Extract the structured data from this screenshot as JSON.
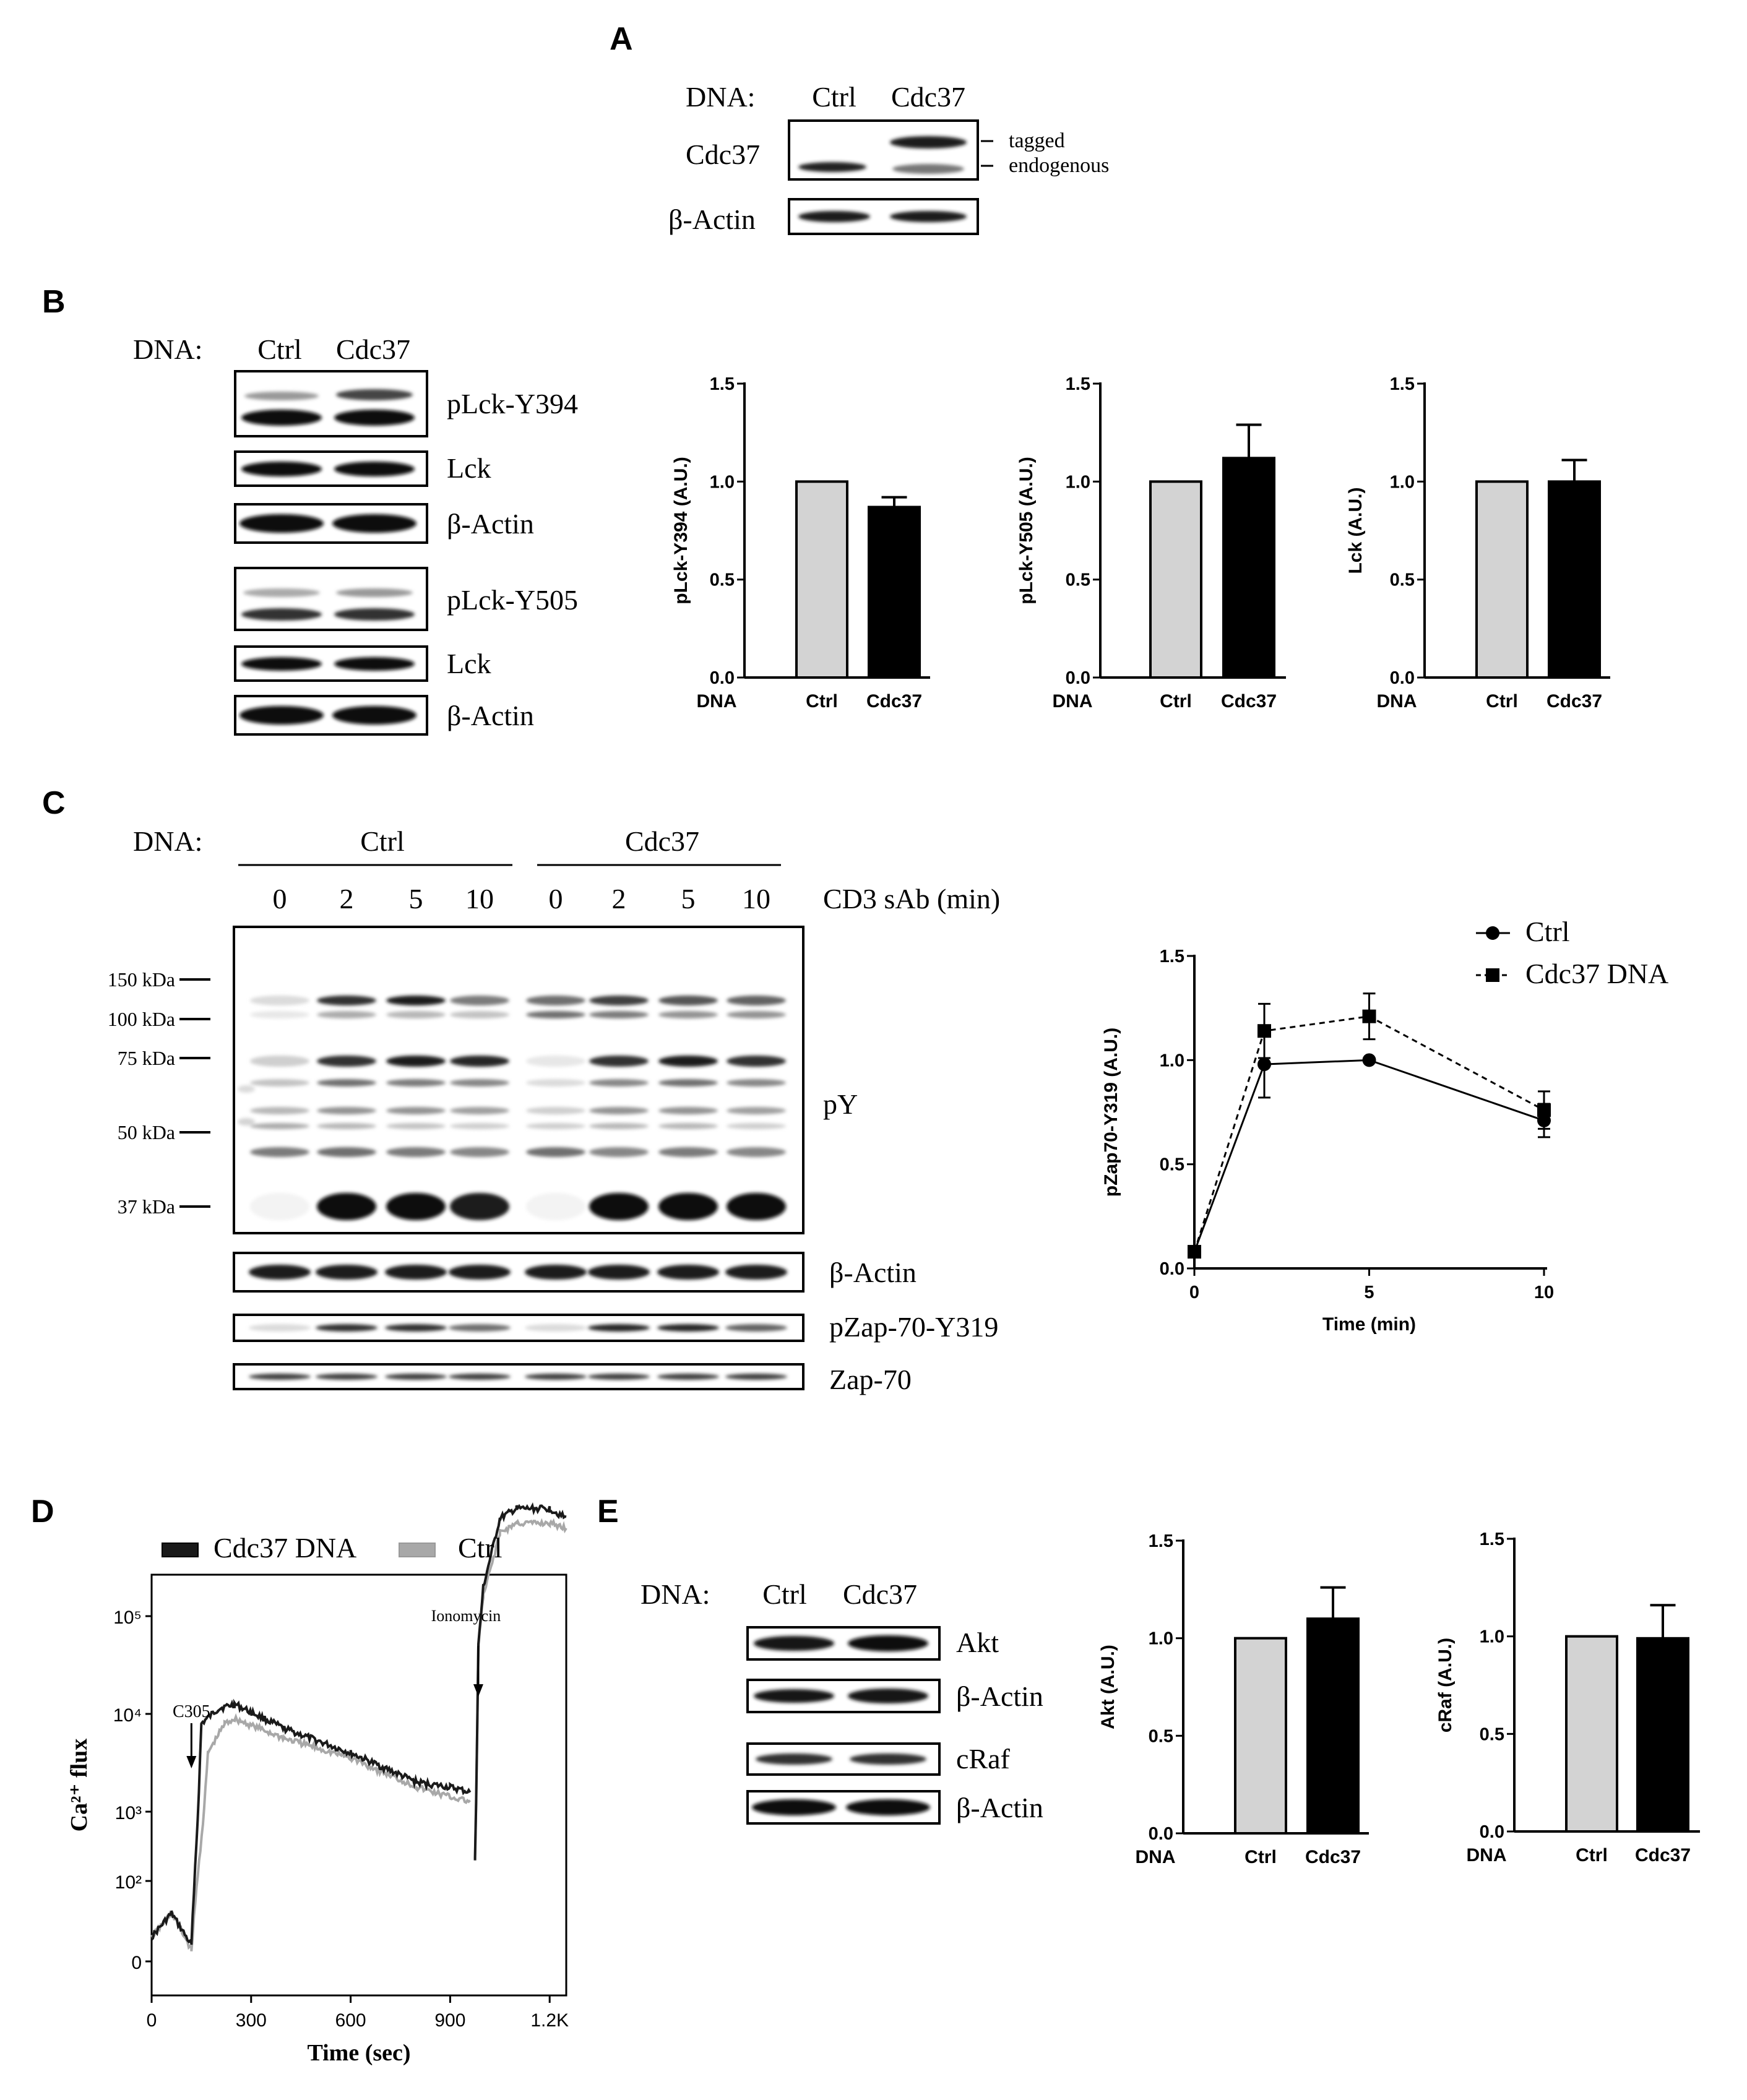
{
  "panels": {
    "A": "A",
    "B": "B",
    "C": "C",
    "D": "D",
    "E": "E"
  },
  "colors": {
    "ctrl_bar": "#d3d3d3",
    "cdc37_bar": "#000000",
    "ctrl_ca": "#a8a8a8",
    "cdc37_ca": "#1a1a1a"
  },
  "panelA": {
    "dna_label": "DNA:",
    "lanes": [
      "Ctrl",
      "Cdc37"
    ],
    "blots": [
      {
        "label": "Cdc37"
      },
      {
        "label": "β-Actin"
      }
    ],
    "annot_tagged": "tagged",
    "annot_endog": "endogenous"
  },
  "panelB": {
    "dna_label": "DNA:",
    "lanes": [
      "Ctrl",
      "Cdc37"
    ],
    "blots": [
      "pLck-Y394",
      "Lck",
      "β-Actin",
      "pLck-Y505",
      "Lck",
      "β-Actin"
    ]
  },
  "panelC": {
    "dna_label": "DNA:",
    "groups": [
      "Ctrl",
      "Cdc37"
    ],
    "times": [
      "0",
      "2",
      "5",
      "10",
      "0",
      "2",
      "5",
      "10"
    ],
    "time_label": "CD3 sAb (min)",
    "markers": [
      "150 kDa",
      "100 kDa",
      "75 kDa",
      "50 kDa",
      "37 kDa"
    ],
    "blots": [
      "pY",
      "β-Actin",
      "pZap-70-Y319",
      "Zap-70"
    ]
  },
  "panelD": {
    "flow_labels": {
      "c305": "C305",
      "ionomycin": "Ionomycin"
    }
  },
  "panelE": {
    "dna_label": "DNA:",
    "lanes": [
      "Ctrl",
      "Cdc37"
    ],
    "blots": [
      "Akt",
      "β-Actin",
      "cRaf",
      "β-Actin"
    ]
  },
  "chart_data": [
    {
      "id": "B1",
      "type": "bar",
      "categories": [
        "Ctrl",
        "Cdc37"
      ],
      "values": [
        1.0,
        0.87
      ],
      "errors": [
        0,
        0.05
      ],
      "ylabel": "pLck-Y394 (A.U.)",
      "xlabel": "DNA",
      "ylim": [
        0,
        1.5
      ],
      "yticks": [
        "0.0",
        "0.5",
        "1.0",
        "1.5"
      ]
    },
    {
      "id": "B2",
      "type": "bar",
      "categories": [
        "Ctrl",
        "Cdc37"
      ],
      "values": [
        1.0,
        1.12
      ],
      "errors": [
        0,
        0.17
      ],
      "ylabel": "pLck-Y505 (A.U.)",
      "xlabel": "DNA",
      "ylim": [
        0,
        1.5
      ],
      "yticks": [
        "0.0",
        "0.5",
        "1.0",
        "1.5"
      ]
    },
    {
      "id": "B3",
      "type": "bar",
      "categories": [
        "Ctrl",
        "Cdc37"
      ],
      "values": [
        1.0,
        1.0
      ],
      "errors": [
        0,
        0.11
      ],
      "ylabel": "Lck (A.U.)",
      "xlabel": "DNA",
      "ylim": [
        0,
        1.5
      ],
      "yticks": [
        "0.0",
        "0.5",
        "1.0",
        "1.5"
      ]
    },
    {
      "id": "C1",
      "type": "line",
      "x": [
        0,
        2,
        5,
        10
      ],
      "xlim": [
        0,
        10
      ],
      "xticks": [
        "0",
        "5",
        "10"
      ],
      "ylim": [
        0,
        1.5
      ],
      "yticks": [
        "0.0",
        "0.5",
        "1.0",
        "1.5"
      ],
      "xlabel": "Time (min)",
      "ylabel": "pZap70-Y319 (A.U.)",
      "series": [
        {
          "name": "Ctrl",
          "values": [
            0.08,
            0.98,
            1.0,
            0.71
          ],
          "errors": [
            0,
            0.16,
            0,
            0.08
          ]
        },
        {
          "name": "Cdc37 DNA",
          "values": [
            0.08,
            1.14,
            1.21,
            0.76
          ],
          "errors": [
            0,
            0.13,
            0.11,
            0.09
          ]
        }
      ]
    },
    {
      "id": "D1",
      "type": "line",
      "xlabel": "Time (sec)",
      "ylabel": "Ca²⁺ flux",
      "xticks": [
        "0",
        "300",
        "600",
        "900",
        "1.2K"
      ],
      "xlim": [
        0,
        1250
      ],
      "yticks": [
        "0",
        "10²",
        "10³",
        "10⁴",
        "10⁵"
      ],
      "legend": [
        "Cdc37 DNA",
        "Ctrl"
      ],
      "series": [
        {
          "name": "Cdc37 DNA",
          "x": [
            0,
            60,
            120,
            150,
            200,
            250,
            400,
            600,
            800,
            900,
            960,
            975,
            985,
            1000,
            1050,
            1100,
            1200,
            1250
          ],
          "values": [
            0.3,
            0.6,
            0.2,
            2.9,
            3.05,
            3.1,
            2.85,
            2.6,
            2.3,
            2.25,
            2.2,
            1.3,
            3.7,
            4.3,
            5.0,
            5.1,
            5.1,
            5.0
          ]
        },
        {
          "name": "Ctrl",
          "x": [
            0,
            60,
            120,
            170,
            220,
            250,
            400,
            600,
            800,
            900,
            960,
            975,
            985,
            1000,
            1050,
            1100,
            1200,
            1250
          ],
          "values": [
            0.3,
            0.6,
            0.15,
            2.6,
            2.9,
            2.95,
            2.75,
            2.55,
            2.25,
            2.15,
            2.1,
            1.3,
            3.7,
            4.2,
            4.85,
            4.95,
            4.95,
            4.9
          ]
        }
      ]
    },
    {
      "id": "E1",
      "type": "bar",
      "categories": [
        "Ctrl",
        "Cdc37"
      ],
      "values": [
        1.0,
        1.1
      ],
      "errors": [
        0,
        0.16
      ],
      "ylabel": "Akt (A.U.)",
      "xlabel": "DNA",
      "ylim": [
        0,
        1.5
      ],
      "yticks": [
        "0.0",
        "0.5",
        "1.0",
        "1.5"
      ]
    },
    {
      "id": "E2",
      "type": "bar",
      "categories": [
        "Ctrl",
        "Cdc37"
      ],
      "values": [
        1.0,
        0.99
      ],
      "errors": [
        0,
        0.17
      ],
      "ylabel": "cRaf (A.U.)",
      "xlabel": "DNA",
      "ylim": [
        0,
        1.5
      ],
      "yticks": [
        "0.0",
        "0.5",
        "1.0",
        "1.5"
      ]
    }
  ]
}
